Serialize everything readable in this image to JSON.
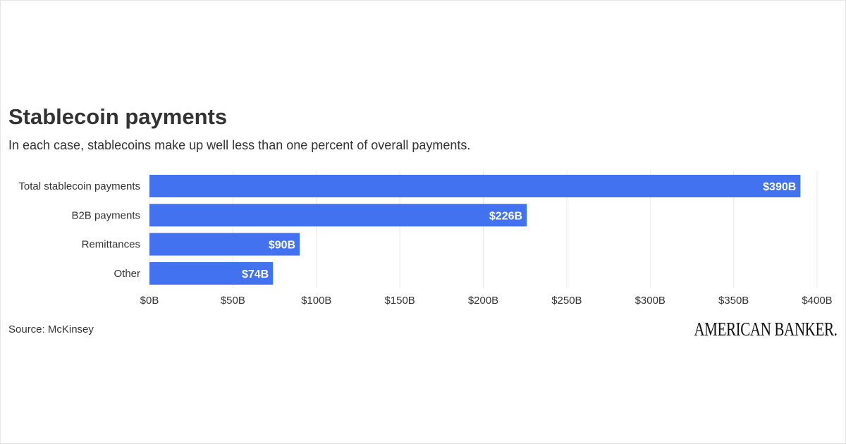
{
  "chart_data": {
    "type": "bar",
    "orientation": "horizontal",
    "title": "Stablecoin payments",
    "subtitle": "In each case, stablecoins make up well less than one percent of overall payments.",
    "categories": [
      "Total stablecoin payments",
      "B2B payments",
      "Remittances",
      "Other"
    ],
    "values": [
      390,
      226,
      90,
      74
    ],
    "data_labels": [
      "$390B",
      "$226B",
      "$90B",
      "$74B"
    ],
    "unit": "billion USD",
    "xlim": [
      0,
      400
    ],
    "ticks": [
      0,
      50,
      100,
      150,
      200,
      250,
      300,
      350,
      400
    ],
    "tick_labels": [
      "$0B",
      "$50B",
      "$100B",
      "$150B",
      "$200B",
      "$250B",
      "$300B",
      "$350B",
      "$400B"
    ],
    "grid": true,
    "bar_color": "#4272f0",
    "source": "Source: McKinsey"
  },
  "branding": {
    "logo": "AMERICAN BANKER."
  }
}
